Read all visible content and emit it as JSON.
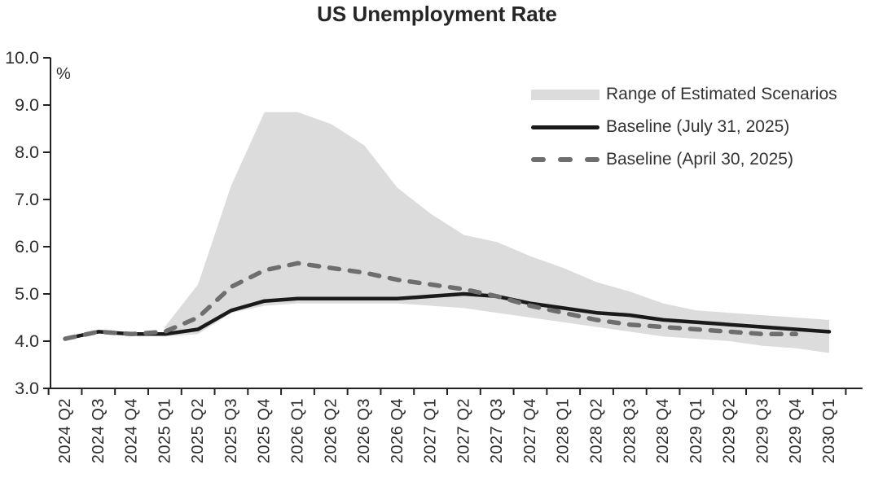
{
  "title": "US Unemployment Rate",
  "y_axis_unit": "%",
  "colors": {
    "band": "#dcdcdc",
    "baseline_july": "#1a1a1a",
    "baseline_april": "#6e6e6e",
    "axis": "#222222",
    "tick_text": "#2d2d2d",
    "title_text": "#262626"
  },
  "legend": [
    {
      "label": "Range of Estimated Scenarios",
      "type": "band",
      "color": "#dcdcdc"
    },
    {
      "label": "Baseline (July 31, 2025)",
      "type": "solid",
      "color": "#1a1a1a"
    },
    {
      "label": "Baseline (April 30, 2025)",
      "type": "dashed",
      "color": "#6e6e6e"
    }
  ],
  "chart_data": {
    "type": "line",
    "title": "US Unemployment Rate",
    "xlabel": "",
    "ylabel": "%",
    "ylim": [
      3.0,
      10.0
    ],
    "y_ticks": [
      3.0,
      4.0,
      5.0,
      6.0,
      7.0,
      8.0,
      9.0,
      10.0
    ],
    "grid": false,
    "legend_position": "top-right",
    "categories": [
      "2024 Q2",
      "2024 Q3",
      "2024 Q4",
      "2025 Q1",
      "2025 Q2",
      "2025 Q3",
      "2025 Q4",
      "2026 Q1",
      "2026 Q2",
      "2026 Q3",
      "2026 Q4",
      "2027 Q1",
      "2027 Q2",
      "2027 Q3",
      "2027 Q4",
      "2028 Q1",
      "2028 Q2",
      "2028 Q3",
      "2028 Q4",
      "2029 Q1",
      "2029 Q2",
      "2029 Q3",
      "2029 Q4",
      "2030 Q1"
    ],
    "series": [
      {
        "name": "Range of Estimated Scenarios",
        "type": "band",
        "color": "#dcdcdc",
        "upper": [
          null,
          null,
          null,
          4.3,
          5.2,
          7.3,
          8.85,
          8.85,
          8.6,
          8.15,
          7.25,
          6.7,
          6.25,
          6.1,
          5.8,
          5.55,
          5.25,
          5.05,
          4.8,
          4.65,
          4.6,
          4.55,
          4.5,
          4.45
        ],
        "lower": [
          null,
          null,
          null,
          4.1,
          4.15,
          4.6,
          4.75,
          4.8,
          4.8,
          4.8,
          4.8,
          4.75,
          4.7,
          4.6,
          4.5,
          4.4,
          4.3,
          4.2,
          4.1,
          4.05,
          4.0,
          3.9,
          3.85,
          3.75
        ]
      },
      {
        "name": "Baseline (July 31, 2025)",
        "type": "line",
        "style": "solid",
        "color": "#1a1a1a",
        "values": [
          4.05,
          4.2,
          4.15,
          4.15,
          4.25,
          4.65,
          4.85,
          4.9,
          4.9,
          4.9,
          4.9,
          4.95,
          5.0,
          4.95,
          4.8,
          4.7,
          4.6,
          4.55,
          4.45,
          4.4,
          4.35,
          4.3,
          4.25,
          4.2
        ]
      },
      {
        "name": "Baseline (April 30, 2025)",
        "type": "line",
        "style": "dashed",
        "color": "#6e6e6e",
        "values": [
          4.05,
          4.2,
          4.15,
          4.2,
          4.5,
          5.15,
          5.5,
          5.65,
          5.55,
          5.45,
          5.3,
          5.2,
          5.1,
          4.95,
          4.75,
          4.6,
          4.45,
          4.35,
          4.3,
          4.25,
          4.2,
          4.15,
          4.15,
          null
        ]
      }
    ]
  }
}
